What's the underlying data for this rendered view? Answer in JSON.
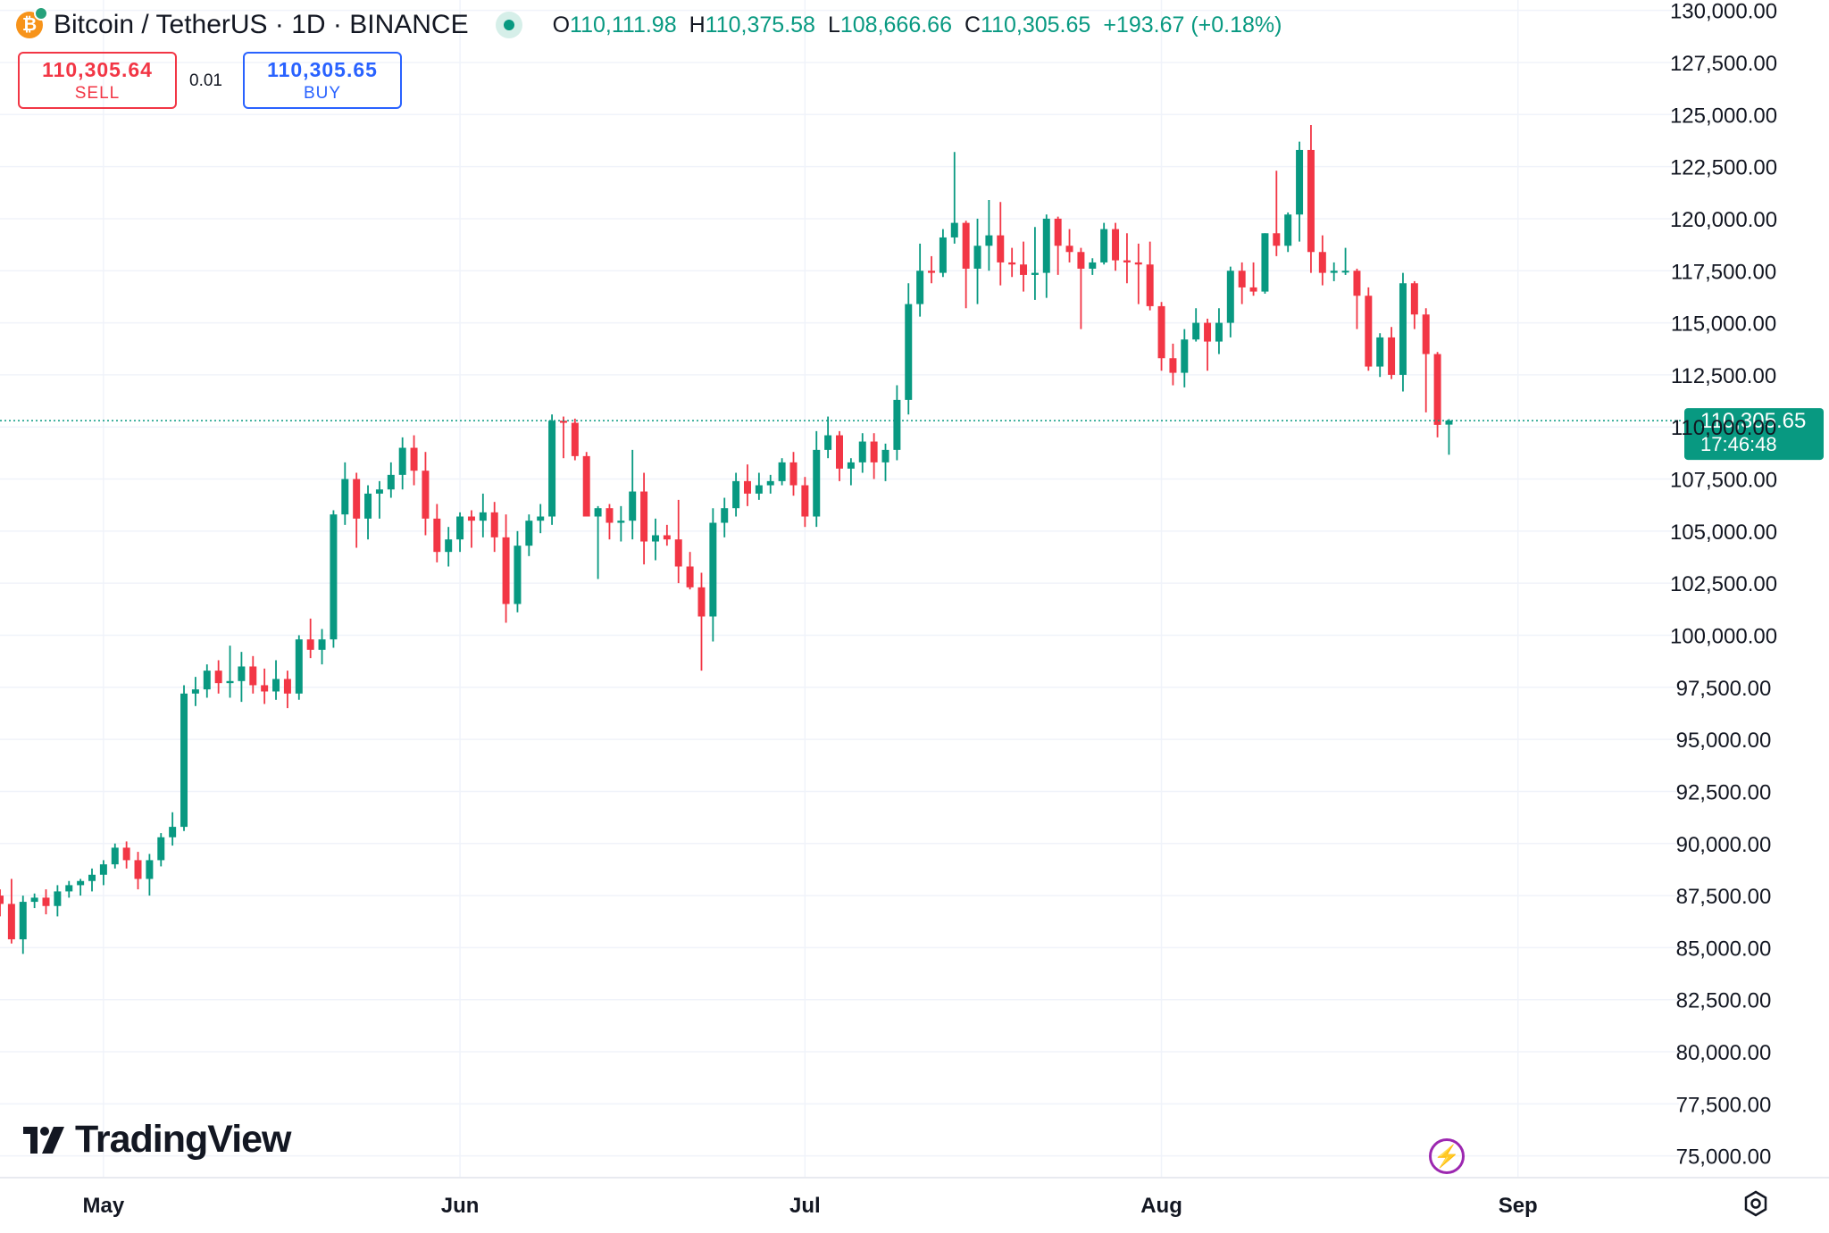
{
  "header": {
    "symbol": "Bitcoin / TetherUS · 1D · BINANCE",
    "ohlc": {
      "o_key": "O",
      "o": "110,111.98",
      "h_key": "H",
      "h": "110,375.58",
      "l_key": "L",
      "l": "108,666.66",
      "c_key": "C",
      "c": "110,305.65",
      "change": "+193.67 (+0.18%)"
    }
  },
  "trade": {
    "sell_price": "110,305.64",
    "sell_label": "SELL",
    "spread": "0.01",
    "buy_price": "110,305.65",
    "buy_label": "BUY"
  },
  "price_tag": {
    "price": "110,305.65",
    "countdown": "17:46:48"
  },
  "logo": {
    "text": "TradingView"
  },
  "icons": {
    "symbol": "bitcoin-icon",
    "live": "market-open-dot-icon",
    "logo": "tradingview-logo-icon",
    "bolt": "lightning-bolt-icon",
    "settings": "gear-icon"
  },
  "colors": {
    "up": "#089981",
    "down": "#f23645",
    "grid": "#f0f3fa",
    "text": "#131722"
  },
  "chart_data": {
    "type": "candlestick",
    "title": "Bitcoin / TetherUS · 1D · BINANCE",
    "x_ticks": [
      "May",
      "Jun",
      "Jul",
      "Aug",
      "Sep"
    ],
    "y_ticks": [
      75000,
      77500,
      80000,
      82500,
      85000,
      87500,
      90000,
      92500,
      95000,
      97500,
      100000,
      102500,
      105000,
      107500,
      110000,
      112500,
      115000,
      117500,
      120000,
      122500,
      125000,
      127500,
      130000
    ],
    "ylim": [
      74000,
      130500
    ],
    "x_range": [
      "2025-04-22",
      "2025-09-15"
    ],
    "last_price": 110305.65,
    "grid": true,
    "candles": [
      {
        "d": "2025-04-22",
        "o": 87500,
        "h": 87800,
        "l": 86500,
        "c": 87100
      },
      {
        "d": "2025-04-23",
        "o": 87100,
        "h": 88300,
        "l": 85200,
        "c": 85400
      },
      {
        "d": "2025-04-24",
        "o": 85400,
        "h": 87500,
        "l": 84700,
        "c": 87200
      },
      {
        "d": "2025-04-25",
        "o": 87200,
        "h": 87600,
        "l": 86900,
        "c": 87400
      },
      {
        "d": "2025-04-26",
        "o": 87400,
        "h": 87800,
        "l": 86600,
        "c": 87000
      },
      {
        "d": "2025-04-27",
        "o": 87000,
        "h": 88000,
        "l": 86500,
        "c": 87700
      },
      {
        "d": "2025-04-28",
        "o": 87700,
        "h": 88200,
        "l": 87400,
        "c": 88000
      },
      {
        "d": "2025-04-29",
        "o": 88000,
        "h": 88300,
        "l": 87500,
        "c": 88200
      },
      {
        "d": "2025-04-30",
        "o": 88200,
        "h": 88800,
        "l": 87700,
        "c": 88500
      },
      {
        "d": "2025-05-01",
        "o": 88500,
        "h": 89200,
        "l": 88000,
        "c": 89000
      },
      {
        "d": "2025-05-02",
        "o": 89000,
        "h": 90000,
        "l": 88800,
        "c": 89800
      },
      {
        "d": "2025-05-03",
        "o": 89800,
        "h": 90100,
        "l": 88800,
        "c": 89200
      },
      {
        "d": "2025-05-04",
        "o": 89200,
        "h": 89600,
        "l": 87800,
        "c": 88300
      },
      {
        "d": "2025-05-05",
        "o": 88300,
        "h": 89500,
        "l": 87500,
        "c": 89200
      },
      {
        "d": "2025-05-06",
        "o": 89200,
        "h": 90500,
        "l": 88900,
        "c": 90300
      },
      {
        "d": "2025-05-07",
        "o": 90300,
        "h": 91500,
        "l": 89900,
        "c": 90800
      },
      {
        "d": "2025-05-08",
        "o": 90800,
        "h": 97600,
        "l": 90600,
        "c": 97200
      },
      {
        "d": "2025-05-09",
        "o": 97200,
        "h": 98000,
        "l": 96600,
        "c": 97400
      },
      {
        "d": "2025-05-10",
        "o": 97400,
        "h": 98600,
        "l": 97000,
        "c": 98300
      },
      {
        "d": "2025-05-11",
        "o": 98300,
        "h": 98800,
        "l": 97200,
        "c": 97700
      },
      {
        "d": "2025-05-12",
        "o": 97700,
        "h": 99500,
        "l": 97000,
        "c": 97800
      },
      {
        "d": "2025-05-13",
        "o": 97800,
        "h": 99200,
        "l": 96800,
        "c": 98500
      },
      {
        "d": "2025-05-14",
        "o": 98500,
        "h": 99000,
        "l": 97200,
        "c": 97600
      },
      {
        "d": "2025-05-15",
        "o": 97600,
        "h": 98400,
        "l": 96700,
        "c": 97300
      },
      {
        "d": "2025-05-16",
        "o": 97300,
        "h": 98800,
        "l": 96900,
        "c": 97900
      },
      {
        "d": "2025-05-17",
        "o": 97900,
        "h": 98300,
        "l": 96500,
        "c": 97200
      },
      {
        "d": "2025-05-18",
        "o": 97200,
        "h": 100000,
        "l": 96900,
        "c": 99800
      },
      {
        "d": "2025-05-19",
        "o": 99800,
        "h": 100800,
        "l": 98900,
        "c": 99300
      },
      {
        "d": "2025-05-20",
        "o": 99300,
        "h": 100300,
        "l": 98600,
        "c": 99800
      },
      {
        "d": "2025-05-21",
        "o": 99800,
        "h": 106000,
        "l": 99400,
        "c": 105800
      },
      {
        "d": "2025-05-22",
        "o": 105800,
        "h": 108300,
        "l": 105300,
        "c": 107500
      },
      {
        "d": "2025-05-23",
        "o": 107500,
        "h": 107800,
        "l": 104200,
        "c": 105600
      },
      {
        "d": "2025-05-24",
        "o": 105600,
        "h": 107200,
        "l": 104600,
        "c": 106800
      },
      {
        "d": "2025-05-25",
        "o": 106800,
        "h": 107400,
        "l": 105600,
        "c": 107000
      },
      {
        "d": "2025-05-26",
        "o": 107000,
        "h": 108300,
        "l": 106600,
        "c": 107700
      },
      {
        "d": "2025-05-27",
        "o": 107700,
        "h": 109500,
        "l": 107000,
        "c": 109000
      },
      {
        "d": "2025-05-28",
        "o": 109000,
        "h": 109600,
        "l": 107200,
        "c": 107900
      },
      {
        "d": "2025-05-29",
        "o": 107900,
        "h": 108800,
        "l": 104800,
        "c": 105600
      },
      {
        "d": "2025-05-30",
        "o": 105600,
        "h": 106300,
        "l": 103500,
        "c": 104000
      },
      {
        "d": "2025-05-31",
        "o": 104000,
        "h": 105200,
        "l": 103300,
        "c": 104600
      },
      {
        "d": "2025-06-01",
        "o": 104600,
        "h": 105900,
        "l": 104000,
        "c": 105700
      },
      {
        "d": "2025-06-02",
        "o": 105700,
        "h": 106000,
        "l": 104200,
        "c": 105500
      },
      {
        "d": "2025-06-03",
        "o": 105500,
        "h": 106800,
        "l": 104700,
        "c": 105900
      },
      {
        "d": "2025-06-04",
        "o": 105900,
        "h": 106400,
        "l": 104000,
        "c": 104700
      },
      {
        "d": "2025-06-05",
        "o": 104700,
        "h": 105800,
        "l": 100600,
        "c": 101500
      },
      {
        "d": "2025-06-06",
        "o": 101500,
        "h": 105000,
        "l": 101100,
        "c": 104300
      },
      {
        "d": "2025-06-07",
        "o": 104300,
        "h": 105800,
        "l": 103800,
        "c": 105500
      },
      {
        "d": "2025-06-08",
        "o": 105500,
        "h": 106300,
        "l": 104900,
        "c": 105700
      },
      {
        "d": "2025-06-09",
        "o": 105700,
        "h": 110600,
        "l": 105300,
        "c": 110300
      },
      {
        "d": "2025-06-10",
        "o": 110300,
        "h": 110500,
        "l": 108500,
        "c": 110200
      },
      {
        "d": "2025-06-11",
        "o": 110200,
        "h": 110400,
        "l": 108400,
        "c": 108600
      },
      {
        "d": "2025-06-12",
        "o": 108600,
        "h": 108800,
        "l": 105700,
        "c": 105700
      },
      {
        "d": "2025-06-13",
        "o": 105700,
        "h": 106200,
        "l": 102700,
        "c": 106100
      },
      {
        "d": "2025-06-14",
        "o": 106100,
        "h": 106300,
        "l": 104600,
        "c": 105400
      },
      {
        "d": "2025-06-15",
        "o": 105400,
        "h": 106200,
        "l": 104500,
        "c": 105500
      },
      {
        "d": "2025-06-16",
        "o": 105500,
        "h": 108900,
        "l": 104600,
        "c": 106900
      },
      {
        "d": "2025-06-17",
        "o": 106900,
        "h": 107800,
        "l": 103400,
        "c": 104500
      },
      {
        "d": "2025-06-18",
        "o": 104500,
        "h": 105600,
        "l": 103600,
        "c": 104800
      },
      {
        "d": "2025-06-19",
        "o": 104800,
        "h": 105300,
        "l": 104300,
        "c": 104600
      },
      {
        "d": "2025-06-20",
        "o": 104600,
        "h": 106500,
        "l": 102500,
        "c": 103300
      },
      {
        "d": "2025-06-21",
        "o": 103300,
        "h": 104000,
        "l": 102200,
        "c": 102300
      },
      {
        "d": "2025-06-22",
        "o": 102300,
        "h": 103000,
        "l": 98300,
        "c": 100900
      },
      {
        "d": "2025-06-23",
        "o": 100900,
        "h": 106100,
        "l": 99700,
        "c": 105400
      },
      {
        "d": "2025-06-24",
        "o": 105400,
        "h": 106600,
        "l": 104700,
        "c": 106100
      },
      {
        "d": "2025-06-25",
        "o": 106100,
        "h": 107800,
        "l": 105700,
        "c": 107400
      },
      {
        "d": "2025-06-26",
        "o": 107400,
        "h": 108200,
        "l": 106200,
        "c": 106800
      },
      {
        "d": "2025-06-27",
        "o": 106800,
        "h": 107800,
        "l": 106500,
        "c": 107200
      },
      {
        "d": "2025-06-28",
        "o": 107200,
        "h": 107700,
        "l": 106800,
        "c": 107400
      },
      {
        "d": "2025-06-29",
        "o": 107400,
        "h": 108500,
        "l": 107200,
        "c": 108300
      },
      {
        "d": "2025-06-30",
        "o": 108300,
        "h": 108800,
        "l": 106700,
        "c": 107200
      },
      {
        "d": "2025-07-01",
        "o": 107200,
        "h": 107600,
        "l": 105200,
        "c": 105700
      },
      {
        "d": "2025-07-02",
        "o": 105700,
        "h": 109800,
        "l": 105200,
        "c": 108900
      },
      {
        "d": "2025-07-03",
        "o": 108900,
        "h": 110500,
        "l": 108500,
        "c": 109600
      },
      {
        "d": "2025-07-04",
        "o": 109600,
        "h": 109800,
        "l": 107400,
        "c": 108000
      },
      {
        "d": "2025-07-05",
        "o": 108000,
        "h": 108500,
        "l": 107200,
        "c": 108300
      },
      {
        "d": "2025-07-06",
        "o": 108300,
        "h": 109700,
        "l": 107800,
        "c": 109300
      },
      {
        "d": "2025-07-07",
        "o": 109300,
        "h": 109700,
        "l": 107500,
        "c": 108300
      },
      {
        "d": "2025-07-08",
        "o": 108300,
        "h": 109200,
        "l": 107400,
        "c": 108900
      },
      {
        "d": "2025-07-09",
        "o": 108900,
        "h": 112000,
        "l": 108400,
        "c": 111300
      },
      {
        "d": "2025-07-10",
        "o": 111300,
        "h": 116900,
        "l": 110600,
        "c": 115900
      },
      {
        "d": "2025-07-11",
        "o": 115900,
        "h": 118800,
        "l": 115300,
        "c": 117500
      },
      {
        "d": "2025-07-12",
        "o": 117500,
        "h": 118200,
        "l": 116900,
        "c": 117400
      },
      {
        "d": "2025-07-13",
        "o": 117400,
        "h": 119500,
        "l": 117200,
        "c": 119100
      },
      {
        "d": "2025-07-14",
        "o": 119100,
        "h": 123200,
        "l": 118800,
        "c": 119800
      },
      {
        "d": "2025-07-15",
        "o": 119800,
        "h": 119900,
        "l": 115700,
        "c": 117600
      },
      {
        "d": "2025-07-16",
        "o": 117600,
        "h": 120000,
        "l": 115900,
        "c": 118700
      },
      {
        "d": "2025-07-17",
        "o": 118700,
        "h": 120900,
        "l": 117500,
        "c": 119200
      },
      {
        "d": "2025-07-18",
        "o": 119200,
        "h": 120800,
        "l": 116800,
        "c": 117900
      },
      {
        "d": "2025-07-19",
        "o": 117900,
        "h": 118600,
        "l": 117200,
        "c": 117800
      },
      {
        "d": "2025-07-20",
        "o": 117800,
        "h": 118900,
        "l": 116500,
        "c": 117300
      },
      {
        "d": "2025-07-21",
        "o": 117300,
        "h": 119600,
        "l": 116100,
        "c": 117400
      },
      {
        "d": "2025-07-22",
        "o": 117400,
        "h": 120200,
        "l": 116200,
        "c": 120000
      },
      {
        "d": "2025-07-23",
        "o": 120000,
        "h": 120100,
        "l": 117300,
        "c": 118700
      },
      {
        "d": "2025-07-24",
        "o": 118700,
        "h": 119500,
        "l": 117900,
        "c": 118400
      },
      {
        "d": "2025-07-25",
        "o": 118400,
        "h": 118600,
        "l": 114700,
        "c": 117600
      },
      {
        "d": "2025-07-26",
        "o": 117600,
        "h": 118100,
        "l": 117300,
        "c": 117900
      },
      {
        "d": "2025-07-27",
        "o": 117900,
        "h": 119800,
        "l": 117800,
        "c": 119500
      },
      {
        "d": "2025-07-28",
        "o": 119500,
        "h": 119800,
        "l": 117500,
        "c": 118000
      },
      {
        "d": "2025-07-29",
        "o": 118000,
        "h": 119300,
        "l": 116900,
        "c": 117900
      },
      {
        "d": "2025-07-30",
        "o": 117900,
        "h": 118800,
        "l": 115900,
        "c": 117800
      },
      {
        "d": "2025-07-31",
        "o": 117800,
        "h": 118900,
        "l": 115600,
        "c": 115800
      },
      {
        "d": "2025-08-01",
        "o": 115800,
        "h": 116000,
        "l": 112700,
        "c": 113300
      },
      {
        "d": "2025-08-02",
        "o": 113300,
        "h": 114000,
        "l": 112000,
        "c": 112600
      },
      {
        "d": "2025-08-03",
        "o": 112600,
        "h": 114700,
        "l": 111900,
        "c": 114200
      },
      {
        "d": "2025-08-04",
        "o": 114200,
        "h": 115700,
        "l": 114100,
        "c": 115000
      },
      {
        "d": "2025-08-05",
        "o": 115000,
        "h": 115200,
        "l": 112700,
        "c": 114100
      },
      {
        "d": "2025-08-06",
        "o": 114100,
        "h": 115700,
        "l": 113500,
        "c": 115000
      },
      {
        "d": "2025-08-07",
        "o": 115000,
        "h": 117700,
        "l": 114300,
        "c": 117500
      },
      {
        "d": "2025-08-08",
        "o": 117500,
        "h": 117900,
        "l": 115900,
        "c": 116700
      },
      {
        "d": "2025-08-09",
        "o": 116700,
        "h": 117900,
        "l": 116300,
        "c": 116500
      },
      {
        "d": "2025-08-10",
        "o": 116500,
        "h": 119300,
        "l": 116400,
        "c": 119300
      },
      {
        "d": "2025-08-11",
        "o": 119300,
        "h": 122300,
        "l": 118200,
        "c": 118700
      },
      {
        "d": "2025-08-12",
        "o": 118700,
        "h": 120300,
        "l": 118400,
        "c": 120200
      },
      {
        "d": "2025-08-13",
        "o": 120200,
        "h": 123700,
        "l": 118900,
        "c": 123300
      },
      {
        "d": "2025-08-14",
        "o": 123300,
        "h": 124500,
        "l": 117400,
        "c": 118400
      },
      {
        "d": "2025-08-15",
        "o": 118400,
        "h": 119200,
        "l": 116800,
        "c": 117400
      },
      {
        "d": "2025-08-16",
        "o": 117400,
        "h": 117900,
        "l": 117000,
        "c": 117500
      },
      {
        "d": "2025-08-17",
        "o": 117500,
        "h": 118600,
        "l": 117300,
        "c": 117500
      },
      {
        "d": "2025-08-18",
        "o": 117500,
        "h": 117600,
        "l": 114700,
        "c": 116300
      },
      {
        "d": "2025-08-19",
        "o": 116300,
        "h": 116700,
        "l": 112700,
        "c": 112900
      },
      {
        "d": "2025-08-20",
        "o": 112900,
        "h": 114500,
        "l": 112400,
        "c": 114300
      },
      {
        "d": "2025-08-21",
        "o": 114300,
        "h": 114800,
        "l": 112300,
        "c": 112500
      },
      {
        "d": "2025-08-22",
        "o": 112500,
        "h": 117400,
        "l": 111700,
        "c": 116900
      },
      {
        "d": "2025-08-23",
        "o": 116900,
        "h": 117000,
        "l": 114700,
        "c": 115400
      },
      {
        "d": "2025-08-24",
        "o": 115400,
        "h": 115700,
        "l": 110700,
        "c": 113500
      },
      {
        "d": "2025-08-25",
        "o": 113500,
        "h": 113600,
        "l": 109500,
        "c": 110100
      },
      {
        "d": "2025-08-26",
        "o": 110111.98,
        "h": 110375.58,
        "l": 108666.66,
        "c": 110305.65
      }
    ]
  }
}
